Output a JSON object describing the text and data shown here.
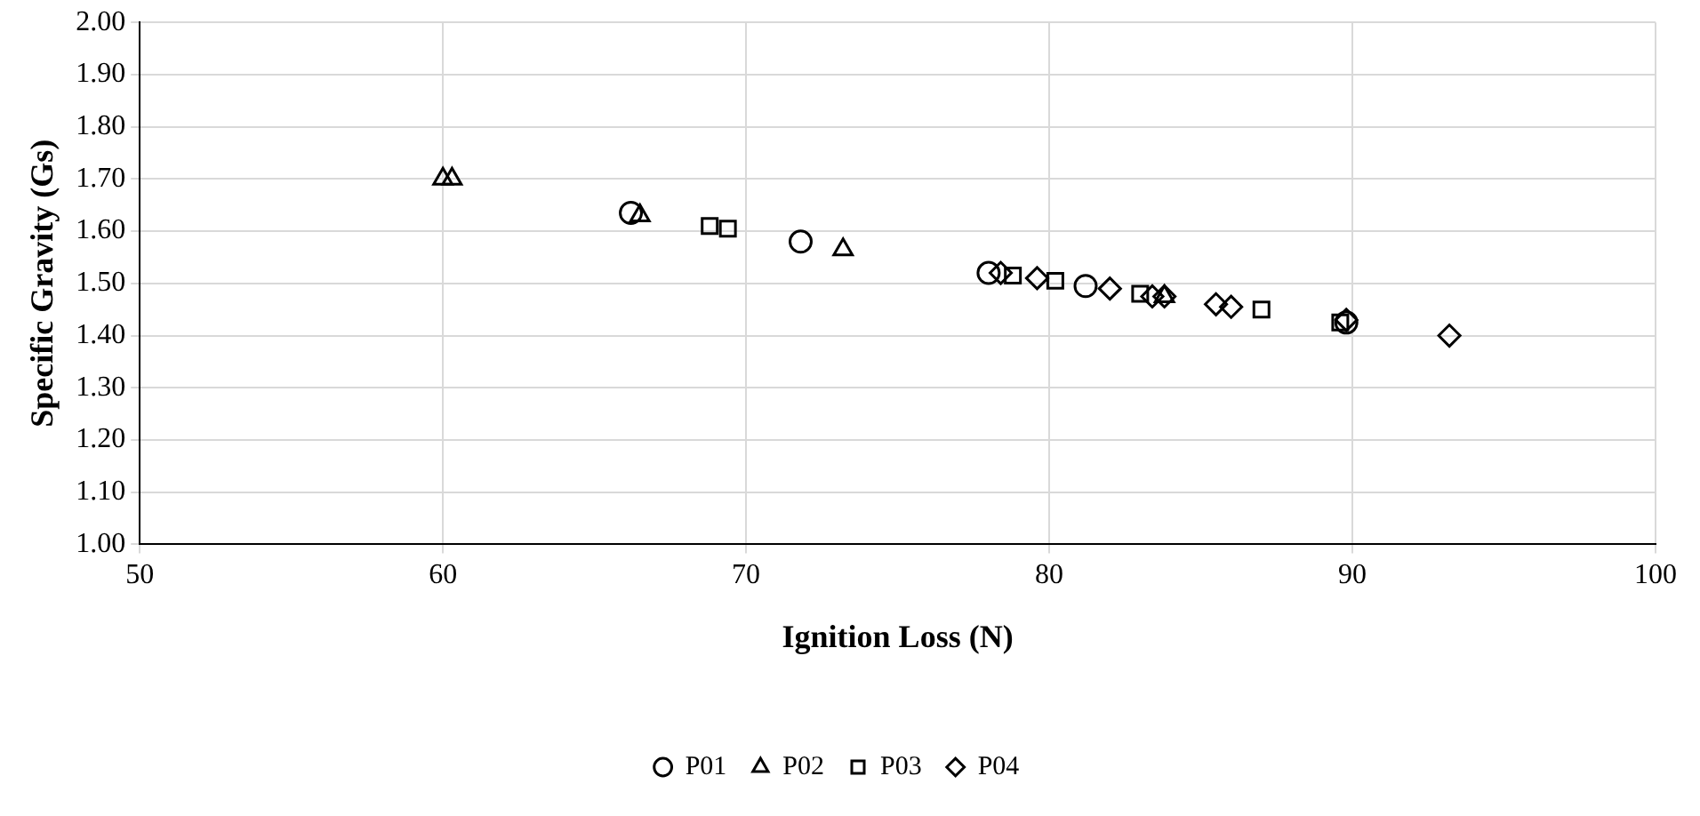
{
  "chart_data": {
    "type": "scatter",
    "xlabel": "Ignition Loss (N)",
    "ylabel": "Specific Gravity (Gs)",
    "xlim": [
      50,
      100
    ],
    "xticks": [
      50,
      60,
      70,
      80,
      90,
      100
    ],
    "ylim": [
      1.0,
      2.0
    ],
    "yticks": [
      {
        "value": 1.0,
        "label": "1.00"
      },
      {
        "value": 1.1,
        "label": "1.10"
      },
      {
        "value": 1.2,
        "label": "1.20"
      },
      {
        "value": 1.3,
        "label": "1.30"
      },
      {
        "value": 1.4,
        "label": "1.40"
      },
      {
        "value": 1.5,
        "label": "1.50"
      },
      {
        "value": 1.6,
        "label": "1.60"
      },
      {
        "value": 1.7,
        "label": "1.70"
      },
      {
        "value": 1.8,
        "label": "1.80"
      },
      {
        "value": 1.9,
        "label": "1.90"
      },
      {
        "value": 2.0,
        "label": "2.00"
      }
    ],
    "grid": true,
    "legend": "bottom",
    "series": [
      {
        "name": "P01",
        "color": "#000000",
        "marker": "circle",
        "x": [
          66.2,
          71.8,
          78.0,
          81.2,
          89.8
        ],
        "values": [
          1.635,
          1.58,
          1.52,
          1.495,
          1.425
        ]
      },
      {
        "name": "P02",
        "color": "#000000",
        "marker": "triangle",
        "x": [
          60.0,
          60.3,
          66.5,
          73.2,
          83.8
        ],
        "values": [
          1.7,
          1.7,
          1.63,
          1.565,
          1.475
        ]
      },
      {
        "name": "P03",
        "color": "#000000",
        "marker": "square",
        "x": [
          68.8,
          69.4,
          78.8,
          80.2,
          83.0,
          87.0,
          89.6
        ],
        "values": [
          1.61,
          1.605,
          1.515,
          1.505,
          1.48,
          1.45,
          1.425
        ]
      },
      {
        "name": "P04",
        "color": "#000000",
        "marker": "diamond",
        "x": [
          78.4,
          79.6,
          82.0,
          83.4,
          83.8,
          85.5,
          86.0,
          89.8,
          93.2
        ],
        "values": [
          1.52,
          1.51,
          1.49,
          1.475,
          1.475,
          1.46,
          1.455,
          1.43,
          1.4
        ]
      }
    ]
  }
}
